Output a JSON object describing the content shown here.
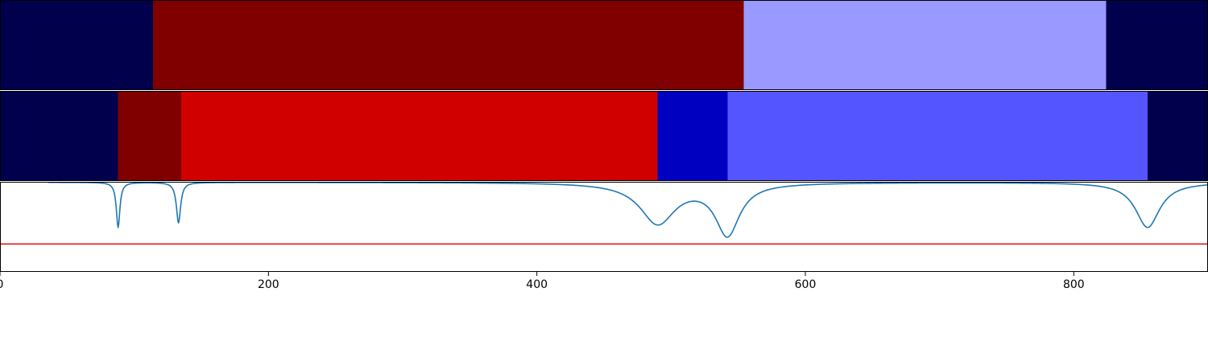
{
  "chart_data": [
    {
      "type": "heatmap",
      "x_range": [
        0,
        900
      ],
      "segments": [
        {
          "x0": 0,
          "x1": 114,
          "color": "#00004c"
        },
        {
          "x0": 114,
          "x1": 554,
          "color": "#800000"
        },
        {
          "x0": 554,
          "x1": 824,
          "color": "#9999ff"
        },
        {
          "x0": 824,
          "x1": 900,
          "color": "#00004c"
        }
      ]
    },
    {
      "type": "heatmap",
      "x_range": [
        0,
        900
      ],
      "segments": [
        {
          "x0": 0,
          "x1": 88,
          "color": "#00004c"
        },
        {
          "x0": 88,
          "x1": 135,
          "color": "#800000"
        },
        {
          "x0": 135,
          "x1": 490,
          "color": "#d00000"
        },
        {
          "x0": 490,
          "x1": 542,
          "color": "#0000c0"
        },
        {
          "x0": 542,
          "x1": 855,
          "color": "#5555ff"
        },
        {
          "x0": 855,
          "x1": 900,
          "color": "#00004c"
        }
      ]
    },
    {
      "type": "line",
      "x_range": [
        0,
        900
      ],
      "y_range": [
        0,
        1
      ],
      "xticks": [
        "0",
        "200",
        "400",
        "600",
        "800"
      ],
      "xtick_values": [
        0,
        200,
        400,
        600,
        800
      ],
      "threshold": {
        "value": 0.31,
        "color": "#e41a1c"
      },
      "series": [
        {
          "color": "#1f77b4",
          "x_start": 36,
          "x_end": 900,
          "baseline": 0.995,
          "dips": [
            {
              "center": 88,
              "depth": 0.5,
              "width": 1.6
            },
            {
              "center": 133,
              "depth": 0.45,
              "width": 1.9
            },
            {
              "center": 490,
              "depth": 0.45,
              "width": 16
            },
            {
              "center": 542,
              "depth": 0.57,
              "width": 11
            },
            {
              "center": 855,
              "depth": 0.5,
              "width": 11
            }
          ]
        }
      ]
    }
  ]
}
